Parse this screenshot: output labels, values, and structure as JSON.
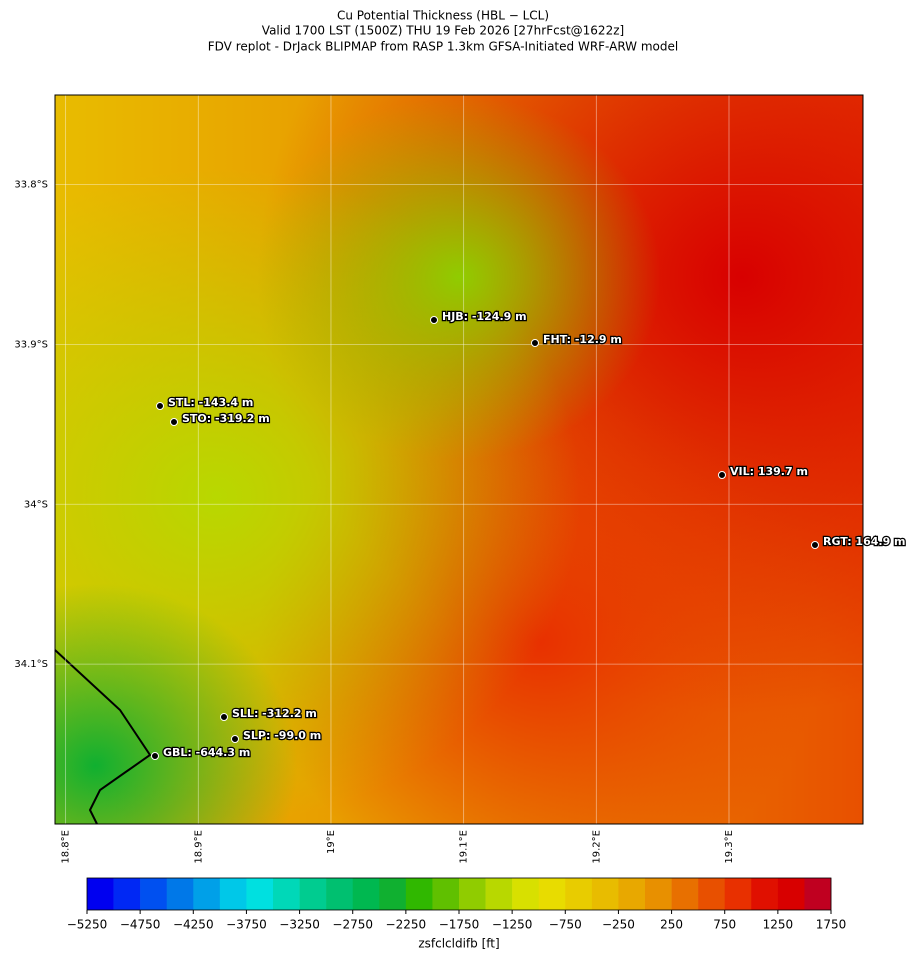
{
  "chart_data": {
    "type": "map",
    "title": [
      "Cu Potential Thickness (HBL − LCL)",
      "Valid 1700 LST (1500Z) THU 19 Feb 2026 [27hrFcst@1622z]",
      "FDV replot - DrJack BLIPMAP from RASP 1.3km GFSA-Initiated WRF-ARW model"
    ],
    "xlim": [
      18.792,
      19.401
    ],
    "ylim": [
      -34.2,
      -33.744
    ],
    "xticks": [
      {
        "value": 18.8,
        "label": "18.8°E"
      },
      {
        "value": 18.9,
        "label": "18.9°E"
      },
      {
        "value": 19.0,
        "label": "19°E"
      },
      {
        "value": 19.1,
        "label": "19.1°E"
      },
      {
        "value": 19.2,
        "label": "19.2°E"
      },
      {
        "value": 19.3,
        "label": "19.3°E"
      }
    ],
    "yticks": [
      {
        "value": -33.8,
        "label": "33.8°S"
      },
      {
        "value": -33.9,
        "label": "33.9°S"
      },
      {
        "value": -34.0,
        "label": "34°S"
      },
      {
        "value": -34.1,
        "label": "34.1°S"
      }
    ],
    "grid": true,
    "stations": [
      "HJB: -124.9 m",
      "FHT: -12.9 m",
      "STL: -143.4 m",
      "STO: -319.2 m",
      "VIL: 139.7 m",
      "RGT: 164.9 m",
      "SLL: -312.2 m",
      "SLP: -99.0 m",
      "GBL: -644.3 m"
    ],
    "colorbar": {
      "label": "zsfclcldifb [ft]",
      "lim": [
        -5250,
        1750
      ],
      "ticks": [
        {
          "value": -5250,
          "label": "−5250"
        },
        {
          "value": -4750,
          "label": "−4750"
        },
        {
          "value": -4250,
          "label": "−4250"
        },
        {
          "value": -3750,
          "label": "−3750"
        },
        {
          "value": -3250,
          "label": "−3250"
        },
        {
          "value": -2750,
          "label": "−2750"
        },
        {
          "value": -2250,
          "label": "−2250"
        },
        {
          "value": -1750,
          "label": "−1750"
        },
        {
          "value": -1250,
          "label": "−1250"
        },
        {
          "value": -750,
          "label": "−750"
        },
        {
          "value": -250,
          "label": "−250"
        },
        250,
        750,
        1250,
        1750
      ],
      "colors": [
        "#0000f0",
        "#0028f4",
        "#0050f0",
        "#0078e8",
        "#00a0e8",
        "#00c8e8",
        "#00e0e0",
        "#00d8b8",
        "#00cc90",
        "#00c070",
        "#00b850",
        "#10b030",
        "#30b800",
        "#60c000",
        "#90cc00",
        "#b8d800",
        "#d8e000",
        "#e8dc00",
        "#e8cc00",
        "#e8bc00",
        "#e8a800",
        "#e89000",
        "#e87000",
        "#e85000",
        "#e83000",
        "#e01000",
        "#d80000",
        "#c00020"
      ]
    }
  }
}
